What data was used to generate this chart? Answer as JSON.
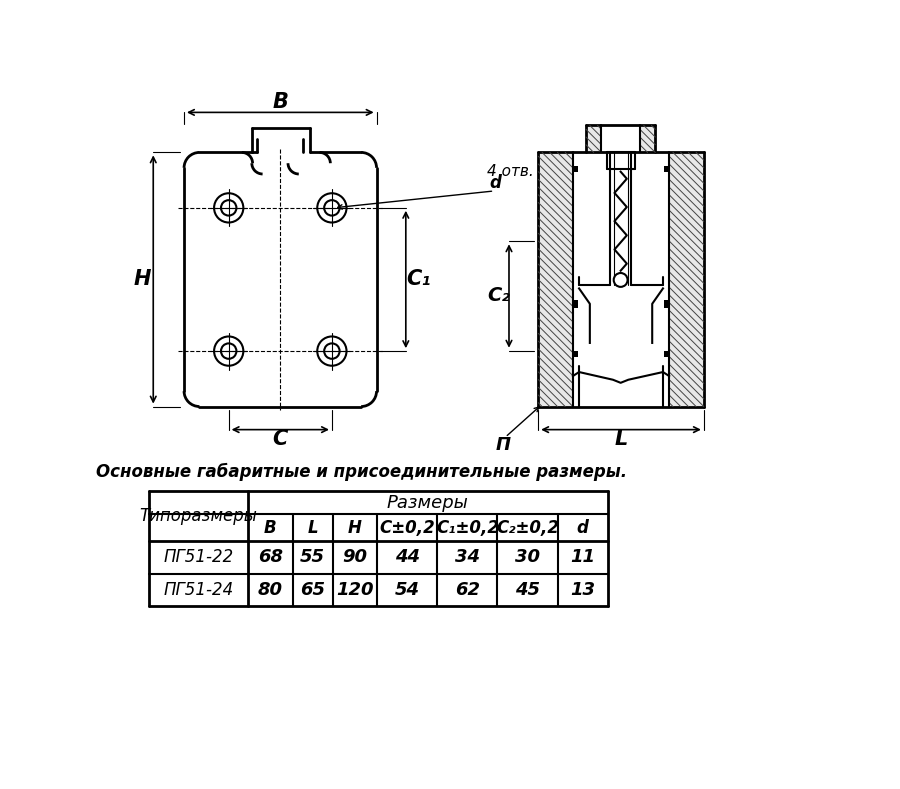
{
  "bg_color": "#ffffff",
  "title_text": "Основные габаритные и присоединительные размеры.",
  "table_header1": "Типоразмеры",
  "table_header2": "Размеры",
  "col_headers": [
    "B",
    "L",
    "H",
    "C±0,2",
    "C₁±0,2",
    "C₂±0,2",
    "d"
  ],
  "rows": [
    [
      "ПГ51-22",
      "68",
      "55",
      "90",
      "44",
      "34",
      "30",
      "11"
    ],
    [
      "ПГ51-24",
      "80",
      "65",
      "120",
      "54",
      "62",
      "45",
      "13"
    ]
  ],
  "dim_B": "B",
  "dim_H": "H",
  "dim_C": "C",
  "dim_C1": "C₁",
  "dim_C2": "C₂",
  "dim_L": "L",
  "note_line1": "4 отв.",
  "note_line2": "d",
  "label_P": "П"
}
